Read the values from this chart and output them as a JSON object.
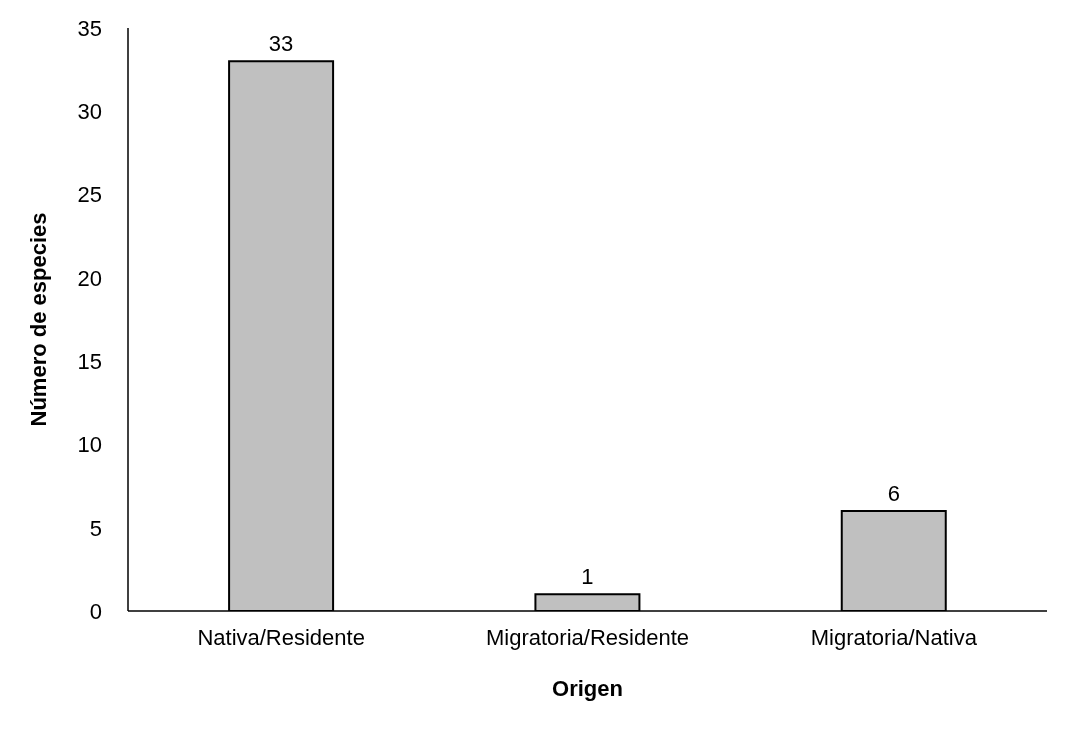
{
  "chart_data": {
    "type": "bar",
    "xlabel": "Origen",
    "ylabel": "Número de especies",
    "categories": [
      "Nativa/Residente",
      "Migratoria/Residente",
      "Migratoria/Nativa"
    ],
    "values": [
      33,
      1,
      6
    ],
    "color": "#c0c0c0",
    "ylim": [
      0,
      35
    ],
    "yticks": [
      0,
      5,
      10,
      15,
      20,
      25,
      30,
      35
    ],
    "grid": false,
    "legend": false,
    "data_labels": true
  }
}
